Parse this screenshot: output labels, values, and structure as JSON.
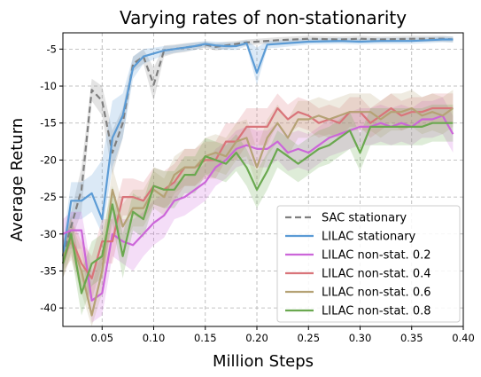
{
  "chart_data": {
    "type": "line",
    "title": "Varying rates of non-stationarity",
    "xlabel": "Million Steps",
    "ylabel": "Average Return",
    "xlim": [
      0.012,
      0.4
    ],
    "ylim": [
      -42.5,
      -2.8
    ],
    "xticks": [
      0.05,
      0.1,
      0.15,
      0.2,
      0.25,
      0.3,
      0.35,
      0.4
    ],
    "xtick_labels": [
      "0.05",
      "0.10",
      "0.15",
      "0.20",
      "0.25",
      "0.30",
      "0.35",
      "0.40"
    ],
    "yticks": [
      -40,
      -35,
      -30,
      -25,
      -20,
      -15,
      -10,
      -5
    ],
    "ytick_labels": [
      "-40",
      "-35",
      "-30",
      "-25",
      "-20",
      "-15",
      "-10",
      "-5"
    ],
    "grid": true,
    "legend_position": "bottom-right",
    "series": [
      {
        "name": "SAC stationary",
        "color": "#7f7f7f",
        "dashed": true,
        "x": [
          0.012,
          0.02,
          0.03,
          0.04,
          0.05,
          0.06,
          0.07,
          0.08,
          0.09,
          0.1,
          0.11,
          0.12,
          0.13,
          0.14,
          0.15,
          0.16,
          0.17,
          0.18,
          0.19,
          0.2,
          0.22,
          0.25,
          0.28,
          0.3,
          0.32,
          0.35,
          0.38,
          0.39
        ],
        "y": [
          -33,
          -29,
          -24,
          -10.5,
          -12,
          -19,
          -15,
          -7,
          -6,
          -9.8,
          -5.2,
          -5,
          -4.8,
          -4.6,
          -4.4,
          -4.7,
          -4.5,
          -4.3,
          -4.1,
          -4,
          -3.8,
          -3.6,
          -3.7,
          -3.6,
          -3.7,
          -3.6,
          -3.6,
          -3.7
        ],
        "upper": [
          -31,
          -27,
          -21,
          -9,
          -10,
          -16,
          -13,
          -6,
          -5,
          -7.5,
          -4.5,
          -4.4,
          -4.2,
          -4.1,
          -4.0,
          -4.2,
          -4.0,
          -3.9,
          -3.7,
          -3.6,
          -3.4,
          -3.2,
          -3.3,
          -3.2,
          -3.3,
          -3.2,
          -3.2,
          -3.3
        ],
        "lower": [
          -35,
          -31,
          -27,
          -12,
          -14,
          -22,
          -17,
          -8,
          -7,
          -12,
          -6,
          -5.6,
          -5.4,
          -5.1,
          -4.8,
          -5.2,
          -5.0,
          -4.7,
          -4.5,
          -4.4,
          -4.2,
          -4.0,
          -4.1,
          -4.0,
          -4.1,
          -4.0,
          -4.0,
          -4.1
        ]
      },
      {
        "name": "LILAC stationary",
        "color": "#5b9bd5",
        "dashed": false,
        "x": [
          0.012,
          0.02,
          0.03,
          0.04,
          0.05,
          0.06,
          0.07,
          0.08,
          0.09,
          0.1,
          0.11,
          0.12,
          0.13,
          0.14,
          0.15,
          0.16,
          0.17,
          0.18,
          0.19,
          0.2,
          0.21,
          0.22,
          0.25,
          0.28,
          0.3,
          0.32,
          0.35,
          0.38,
          0.39
        ],
        "y": [
          -33,
          -25.5,
          -25.5,
          -24.5,
          -28,
          -17,
          -14,
          -7.5,
          -6,
          -5.6,
          -5.2,
          -5,
          -4.8,
          -4.6,
          -4.3,
          -4.5,
          -4.6,
          -4.6,
          -4.2,
          -8.2,
          -4.4,
          -4.3,
          -4.0,
          -3.9,
          -4.0,
          -3.9,
          -3.9,
          -3.7,
          -3.7
        ],
        "upper": [
          -31,
          -23,
          -23,
          -22,
          -20,
          -12,
          -11,
          -6,
          -5,
          -4.8,
          -4.6,
          -4.5,
          -4.3,
          -4.1,
          -3.9,
          -4.0,
          -4.1,
          -4.1,
          -3.8,
          -4.8,
          -3.9,
          -3.8,
          -3.6,
          -3.5,
          -3.6,
          -3.5,
          -3.5,
          -3.3,
          -3.3
        ],
        "lower": [
          -35,
          -28,
          -28,
          -27,
          -30,
          -21,
          -17,
          -9,
          -7,
          -6.4,
          -5.8,
          -5.5,
          -5.3,
          -5.1,
          -4.7,
          -5.0,
          -5.1,
          -5.1,
          -4.6,
          -9.8,
          -4.9,
          -4.8,
          -4.4,
          -4.3,
          -4.4,
          -4.3,
          -4.3,
          -4.1,
          -4.1
        ]
      },
      {
        "name": "LILAC non-stat. 0.2",
        "color": "#cc66d9",
        "dashed": false,
        "x": [
          0.012,
          0.02,
          0.03,
          0.04,
          0.05,
          0.06,
          0.07,
          0.08,
          0.09,
          0.1,
          0.11,
          0.12,
          0.13,
          0.14,
          0.15,
          0.16,
          0.17,
          0.18,
          0.19,
          0.2,
          0.21,
          0.22,
          0.23,
          0.24,
          0.25,
          0.26,
          0.27,
          0.28,
          0.29,
          0.3,
          0.31,
          0.32,
          0.33,
          0.34,
          0.35,
          0.36,
          0.37,
          0.38,
          0.39
        ],
        "y": [
          -30,
          -29.5,
          -29.5,
          -39,
          -38,
          -30,
          -31,
          -31.5,
          -30,
          -28.5,
          -27.5,
          -25.5,
          -25,
          -24,
          -23,
          -21,
          -20,
          -18.5,
          -18,
          -18.5,
          -18.5,
          -17.5,
          -19,
          -18.5,
          -19,
          -18,
          -17,
          -16.5,
          -16,
          -15.5,
          -15.5,
          -15,
          -15.5,
          -15,
          -15.5,
          -14.5,
          -14.5,
          -14,
          -16.5
        ],
        "upper": [
          -28,
          -27,
          -27,
          -35,
          -33,
          -27,
          -28,
          -28,
          -27,
          -25.5,
          -24.5,
          -23,
          -22.5,
          -21.5,
          -20.5,
          -18.5,
          -17.5,
          -16,
          -15.5,
          -16,
          -16,
          -15,
          -16.5,
          -16,
          -16.5,
          -15.5,
          -14.5,
          -14,
          -13.5,
          -13,
          -13,
          -12.5,
          -13,
          -12.5,
          -13,
          -12,
          -12,
          -11.5,
          -14
        ],
        "lower": [
          -32,
          -32,
          -32,
          -42,
          -41,
          -33,
          -34,
          -35,
          -33,
          -31.5,
          -30.5,
          -28,
          -27.5,
          -26.5,
          -25.5,
          -23.5,
          -22.5,
          -21,
          -20.5,
          -21,
          -21,
          -20,
          -21.5,
          -21,
          -21.5,
          -20.5,
          -19.5,
          -19,
          -18.5,
          -18,
          -18,
          -17.5,
          -18,
          -17.5,
          -18,
          -17,
          -17,
          -16.5,
          -19
        ]
      },
      {
        "name": "LILAC non-stat. 0.4",
        "color": "#d9747a",
        "dashed": false,
        "x": [
          0.012,
          0.02,
          0.03,
          0.04,
          0.05,
          0.06,
          0.07,
          0.08,
          0.09,
          0.1,
          0.11,
          0.12,
          0.13,
          0.14,
          0.15,
          0.16,
          0.17,
          0.18,
          0.19,
          0.2,
          0.21,
          0.22,
          0.23,
          0.24,
          0.25,
          0.26,
          0.27,
          0.28,
          0.29,
          0.3,
          0.31,
          0.32,
          0.33,
          0.34,
          0.35,
          0.36,
          0.37,
          0.38,
          0.39
        ],
        "y": [
          -34,
          -30.5,
          -34,
          -36,
          -31,
          -31,
          -25,
          -25,
          -25.5,
          -23.5,
          -24,
          -23,
          -21,
          -21,
          -20,
          -20,
          -17.5,
          -17.5,
          -15.5,
          -15.5,
          -15.5,
          -13,
          -14.5,
          -13.5,
          -14,
          -15,
          -14.5,
          -15,
          -13.5,
          -13.5,
          -15,
          -14,
          -13,
          -14,
          -13.5,
          -13.5,
          -13,
          -13,
          -13
        ],
        "upper": [
          -32,
          -28,
          -31,
          -33,
          -28,
          -28,
          -22.5,
          -22.5,
          -23,
          -21,
          -21.5,
          -20.5,
          -18.5,
          -18.5,
          -17.5,
          -17.5,
          -15,
          -15,
          -13,
          -13,
          -13,
          -11,
          -12.5,
          -11.5,
          -12,
          -13,
          -12.5,
          -13,
          -11.5,
          -11.5,
          -13,
          -12,
          -11,
          -12,
          -11.5,
          -11.5,
          -11,
          -11,
          -11
        ],
        "lower": [
          -36,
          -33,
          -37,
          -39,
          -34,
          -34,
          -27.5,
          -27.5,
          -28,
          -26,
          -26.5,
          -25.5,
          -23.5,
          -23.5,
          -22.5,
          -22.5,
          -20,
          -20,
          -18,
          -18,
          -18,
          -15,
          -16.5,
          -15.5,
          -16,
          -17,
          -16.5,
          -17,
          -15.5,
          -15.5,
          -17,
          -16,
          -15,
          -16,
          -15.5,
          -15.5,
          -15,
          -15,
          -15
        ]
      },
      {
        "name": "LILAC non-stat. 0.6",
        "color": "#b5a275",
        "dashed": false,
        "x": [
          0.012,
          0.02,
          0.03,
          0.04,
          0.05,
          0.06,
          0.07,
          0.08,
          0.09,
          0.1,
          0.11,
          0.12,
          0.13,
          0.14,
          0.15,
          0.16,
          0.17,
          0.18,
          0.19,
          0.2,
          0.21,
          0.22,
          0.23,
          0.24,
          0.25,
          0.26,
          0.27,
          0.28,
          0.29,
          0.3,
          0.31,
          0.32,
          0.33,
          0.34,
          0.35,
          0.36,
          0.37,
          0.38,
          0.39
        ],
        "y": [
          -33,
          -31,
          -35,
          -41,
          -35,
          -24,
          -29,
          -26.5,
          -26.5,
          -24,
          -25,
          -22,
          -21,
          -21,
          -19.5,
          -19,
          -19.5,
          -17.5,
          -17,
          -21,
          -17,
          -15,
          -17,
          -14.5,
          -14.5,
          -14,
          -14.5,
          -14,
          -13.5,
          -13.5,
          -13.5,
          -14.5,
          -13.5,
          -13.5,
          -13,
          -14,
          -13.5,
          -14,
          -13
        ],
        "upper": [
          -31,
          -28.5,
          -32,
          -37,
          -32,
          -21,
          -26,
          -24,
          -24,
          -21.5,
          -22.5,
          -19.5,
          -18.5,
          -18.5,
          -17,
          -16.5,
          -17,
          -15,
          -14.5,
          -18.5,
          -14.5,
          -12.5,
          -14.5,
          -12,
          -12,
          -11.5,
          -12,
          -11.5,
          -11,
          -11,
          -11,
          -12,
          -11,
          -11,
          -10.5,
          -11.5,
          -11,
          -11.5,
          -10.5
        ],
        "lower": [
          -35,
          -33.5,
          -38,
          -43,
          -38,
          -27,
          -32,
          -29,
          -29,
          -26.5,
          -27.5,
          -24.5,
          -23.5,
          -23.5,
          -22,
          -21.5,
          -22,
          -20,
          -19.5,
          -23.5,
          -19.5,
          -17.5,
          -19.5,
          -17,
          -17,
          -16.5,
          -17,
          -16.5,
          -16,
          -16,
          -16,
          -17,
          -16,
          -16,
          -15.5,
          -16.5,
          -16,
          -16.5,
          -15.5
        ]
      },
      {
        "name": "LILAC non-stat. 0.8",
        "color": "#6aa84f",
        "dashed": false,
        "x": [
          0.012,
          0.02,
          0.03,
          0.04,
          0.05,
          0.06,
          0.07,
          0.08,
          0.09,
          0.1,
          0.11,
          0.12,
          0.13,
          0.14,
          0.15,
          0.16,
          0.17,
          0.18,
          0.19,
          0.2,
          0.21,
          0.22,
          0.23,
          0.24,
          0.25,
          0.26,
          0.27,
          0.28,
          0.29,
          0.3,
          0.31,
          0.32,
          0.33,
          0.34,
          0.35,
          0.36,
          0.37,
          0.38,
          0.39
        ],
        "y": [
          -34,
          -30,
          -38,
          -34,
          -33,
          -26,
          -33,
          -27,
          -28,
          -23.5,
          -24,
          -24,
          -22,
          -22,
          -19.5,
          -20,
          -20.5,
          -19,
          -21,
          -24,
          -21.5,
          -18.5,
          -19.5,
          -20.5,
          -19.5,
          -18.5,
          -18,
          -17,
          -16,
          -19,
          -15.5,
          -15.5,
          -15.5,
          -15.5,
          -15.5,
          -15.5,
          -15,
          -15,
          -15
        ],
        "upper": [
          -32,
          -27.5,
          -35,
          -31,
          -30,
          -23.5,
          -30,
          -24.5,
          -25.5,
          -21,
          -21.5,
          -21.5,
          -19.5,
          -19.5,
          -17,
          -17.5,
          -18,
          -16.5,
          -18.5,
          -21.5,
          -19,
          -16,
          -17,
          -18,
          -17,
          -16,
          -15.5,
          -14.5,
          -13.5,
          -16.5,
          -13,
          -13,
          -13,
          -13,
          -13,
          -13,
          -12.5,
          -12.5,
          -12.5
        ],
        "lower": [
          -36,
          -32.5,
          -41,
          -37,
          -36,
          -28.5,
          -36,
          -29.5,
          -30.5,
          -26,
          -26.5,
          -26.5,
          -24.5,
          -24.5,
          -22,
          -22.5,
          -23,
          -21.5,
          -23.5,
          -26.5,
          -24,
          -21,
          -22,
          -23,
          -22,
          -21,
          -20.5,
          -19.5,
          -18.5,
          -21.5,
          -18,
          -18,
          -18,
          -18,
          -18,
          -18,
          -17.5,
          -17.5,
          -17.5
        ]
      }
    ]
  }
}
